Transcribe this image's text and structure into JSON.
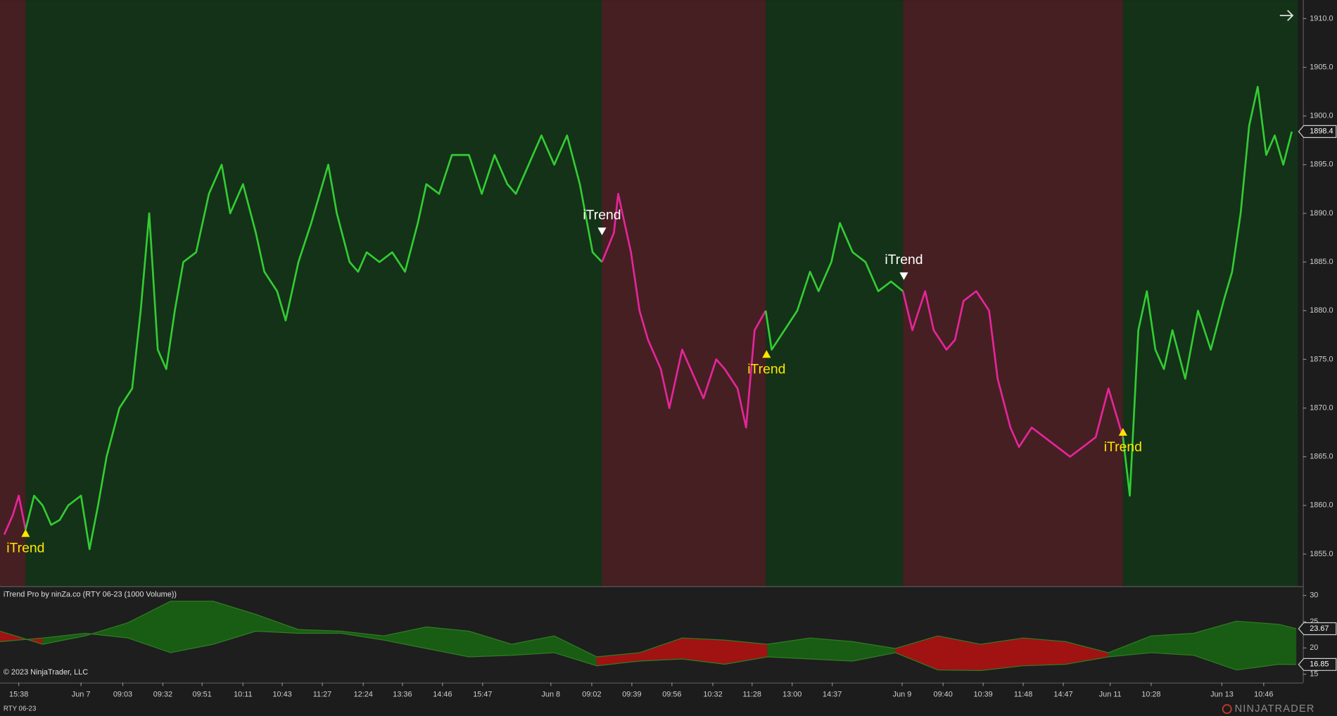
{
  "chart_data": [
    {
      "type": "line",
      "xlim": [
        0,
        152.2
      ],
      "ylim": [
        1851.7,
        1911.9
      ],
      "yticks": [
        {
          "value": 1855,
          "label": "1855.0"
        },
        {
          "value": 1860,
          "label": "1860.0"
        },
        {
          "value": 1865,
          "label": "1865.0"
        },
        {
          "value": 1870,
          "label": "1870.0"
        },
        {
          "value": 1875,
          "label": "1875.0"
        },
        {
          "value": 1880,
          "label": "1880.0"
        },
        {
          "value": 1885,
          "label": "1885.0"
        },
        {
          "value": 1890,
          "label": "1890.0"
        },
        {
          "value": 1895,
          "label": "1895.0"
        },
        {
          "value": 1900,
          "label": "1900.0"
        },
        {
          "value": 1905,
          "label": "1905.0"
        },
        {
          "value": 1910,
          "label": "1910.0"
        }
      ],
      "xticks": [
        {
          "value": 2.2,
          "label": "15:38"
        },
        {
          "value": 9.5,
          "label": "Jun 7"
        },
        {
          "value": 14.4,
          "label": "09:03"
        },
        {
          "value": 19.1,
          "label": "09:32"
        },
        {
          "value": 23.7,
          "label": "09:51"
        },
        {
          "value": 28.5,
          "label": "10:11"
        },
        {
          "value": 33.1,
          "label": "10:43"
        },
        {
          "value": 37.8,
          "label": "11:27"
        },
        {
          "value": 42.6,
          "label": "12:24"
        },
        {
          "value": 47.2,
          "label": "13:36"
        },
        {
          "value": 51.9,
          "label": "14:46"
        },
        {
          "value": 56.6,
          "label": "15:47"
        },
        {
          "value": 64.6,
          "label": "Jun 8"
        },
        {
          "value": 69.4,
          "label": "09:02"
        },
        {
          "value": 74.1,
          "label": "09:39"
        },
        {
          "value": 78.8,
          "label": "09:56"
        },
        {
          "value": 83.6,
          "label": "10:32"
        },
        {
          "value": 88.2,
          "label": "11:28"
        },
        {
          "value": 92.9,
          "label": "13:00"
        },
        {
          "value": 97.6,
          "label": "14:37"
        },
        {
          "value": 105.8,
          "label": "Jun 9"
        },
        {
          "value": 110.6,
          "label": "09:40"
        },
        {
          "value": 115.3,
          "label": "10:39"
        },
        {
          "value": 120.0,
          "label": "11:48"
        },
        {
          "value": 124.7,
          "label": "14:47"
        },
        {
          "value": 130.2,
          "label": "Jun 11"
        },
        {
          "value": 135.0,
          "label": "10:28"
        },
        {
          "value": 143.3,
          "label": "Jun 13"
        },
        {
          "value": 148.2,
          "label": "10:46"
        }
      ],
      "zones": [
        {
          "start": 0,
          "end": 3.0,
          "trend": "down",
          "color": "#461f23"
        },
        {
          "start": 3.0,
          "end": 70.6,
          "trend": "up",
          "color": "#143218"
        },
        {
          "start": 70.6,
          "end": 89.8,
          "trend": "down",
          "color": "#461f23"
        },
        {
          "start": 89.8,
          "end": 105.9,
          "trend": "up",
          "color": "#143218"
        },
        {
          "start": 105.9,
          "end": 131.7,
          "trend": "down",
          "color": "#461f23"
        },
        {
          "start": 131.7,
          "end": 152.2,
          "trend": "up",
          "color": "#143218"
        }
      ],
      "series": [
        {
          "color": "#e6259a",
          "x": [
            0.5,
            1.5,
            2.2,
            3.0
          ],
          "values": [
            1857,
            1859,
            1861,
            1857.5
          ]
        },
        {
          "color": "#33cc33",
          "x": [
            3.0,
            4,
            5,
            6,
            7,
            8,
            9.5,
            10.5,
            11.5,
            12.5,
            14,
            15.5,
            16.5,
            17.5,
            18.5,
            19.5,
            20.5,
            21.5,
            23,
            24.5,
            26,
            27,
            28.5,
            30,
            31,
            32.5,
            33.5,
            35,
            36.5,
            38.5,
            39.5,
            41,
            42,
            43,
            44.5,
            46,
            47.5,
            49,
            50,
            51.5,
            53,
            55,
            56.5,
            58,
            59.5,
            60.5,
            62,
            63.5,
            65,
            66.5,
            68,
            69.5,
            70.6
          ],
          "values": [
            1857.5,
            1861,
            1860,
            1858,
            1858.5,
            1860,
            1861,
            1855.5,
            1860,
            1865,
            1870,
            1872,
            1880,
            1890,
            1876,
            1874,
            1880,
            1885,
            1886,
            1892,
            1895,
            1890,
            1893,
            1888,
            1884,
            1882,
            1879,
            1885,
            1889,
            1895,
            1890,
            1885,
            1884,
            1886,
            1885,
            1886,
            1884,
            1889,
            1893,
            1892,
            1896,
            1896,
            1892,
            1896,
            1893,
            1892,
            1895,
            1898,
            1895,
            1898,
            1893,
            1886,
            1885
          ]
        },
        {
          "color": "#e6259a",
          "x": [
            70.6,
            72,
            72.5,
            74,
            75,
            76,
            77.5,
            78.5,
            80,
            81.5,
            82.5,
            84,
            85,
            86.5,
            87.5,
            88.5,
            89.8
          ],
          "values": [
            1885,
            1888,
            1892,
            1886,
            1880,
            1877,
            1874,
            1870,
            1876,
            1873,
            1871,
            1875,
            1874,
            1872,
            1868,
            1878,
            1880
          ]
        },
        {
          "color": "#33cc33",
          "x": [
            89.8,
            90.5,
            92,
            93.5,
            95,
            96,
            97.5,
            98.5,
            100,
            101.5,
            103,
            104.5,
            105.9
          ],
          "values": [
            1880,
            1876,
            1878,
            1880,
            1884,
            1882,
            1885,
            1889,
            1886,
            1885,
            1882,
            1883,
            1882
          ]
        },
        {
          "color": "#e6259a",
          "x": [
            105.9,
            107,
            108.5,
            109.5,
            111,
            112,
            113,
            114.5,
            116,
            117,
            118.5,
            119.5,
            121,
            122.5,
            124,
            125.5,
            127,
            128.5,
            130,
            131.7
          ],
          "values": [
            1882,
            1878,
            1882,
            1878,
            1876,
            1877,
            1881,
            1882,
            1880,
            1873,
            1868,
            1866,
            1868,
            1867,
            1866,
            1865,
            1866,
            1867,
            1872,
            1867
          ]
        },
        {
          "color": "#33cc33",
          "x": [
            131.7,
            132.5,
            133.5,
            134.5,
            135.5,
            136.5,
            137.5,
            139,
            140.5,
            142,
            143.5,
            144.5,
            145.5,
            146.5,
            147.5,
            148.5,
            149.5,
            150.5,
            151.5
          ],
          "values": [
            1867,
            1861,
            1878,
            1882,
            1876,
            1874,
            1878,
            1873,
            1880,
            1876,
            1881,
            1884,
            1890,
            1899,
            1903,
            1896,
            1898,
            1895,
            1898.4
          ]
        }
      ],
      "signals": [
        {
          "x": 3.0,
          "y": 1857.2,
          "direction": "up",
          "label": "iTrend",
          "color": "#ffe600"
        },
        {
          "x": 70.6,
          "y": 1888.1,
          "direction": "down",
          "label": "iTrend",
          "color": "#ffffff"
        },
        {
          "x": 89.9,
          "y": 1875.6,
          "direction": "up",
          "label": "iTrend",
          "color": "#ffe600"
        },
        {
          "x": 106.0,
          "y": 1883.5,
          "direction": "down",
          "label": "iTrend",
          "color": "#ffffff"
        },
        {
          "x": 131.7,
          "y": 1867.6,
          "direction": "up",
          "label": "iTrend",
          "color": "#ffe600"
        }
      ]
    },
    {
      "type": "band",
      "title": "iTrend Pro by ninZa.co (RTY 06-23 (1000 Volume))",
      "footnote": "© 2023 NinjaTrader, LLC",
      "ylim": [
        13.4,
        31.6
      ],
      "yticks": [
        15,
        20,
        25,
        30
      ],
      "fill_colors": {
        "up": "#195c13",
        "down": "#a11212"
      },
      "x": [
        0,
        5,
        10,
        15,
        20,
        25,
        30,
        35,
        40,
        45,
        50,
        55,
        60,
        65,
        70,
        75,
        80,
        85,
        90,
        95,
        100,
        105,
        110,
        115,
        120,
        125,
        130,
        135,
        140,
        145,
        150,
        152
      ],
      "series": [
        {
          "color": "#2f7d24",
          "values": [
            23.2,
            20.7,
            22.3,
            24.8,
            28.9,
            28.9,
            26.4,
            23.5,
            23.2,
            22.3,
            24,
            23.2,
            20.7,
            22.3,
            18.3,
            19.1,
            21.9,
            21.5,
            20.7,
            21.9,
            21.2,
            19.9,
            22.3,
            20.7,
            21.9,
            21.2,
            19.1,
            22.3,
            22.8,
            25.1,
            24.5,
            23.67
          ]
        },
        {
          "color": "#2f7d24",
          "values": [
            21.2,
            21.9,
            22.8,
            21.9,
            19.1,
            20.7,
            23.2,
            22.8,
            22.8,
            21.5,
            19.9,
            18.3,
            18.6,
            19.1,
            16.6,
            17.5,
            17.9,
            16.9,
            18.3,
            17.9,
            17.5,
            19.1,
            15.8,
            15.7,
            16.6,
            16.9,
            18.3,
            19.1,
            18.6,
            15.8,
            16.9,
            16.85
          ]
        }
      ]
    }
  ],
  "footer": {
    "instrument": "RTY 06-23",
    "logo": "NINJATRADER"
  }
}
